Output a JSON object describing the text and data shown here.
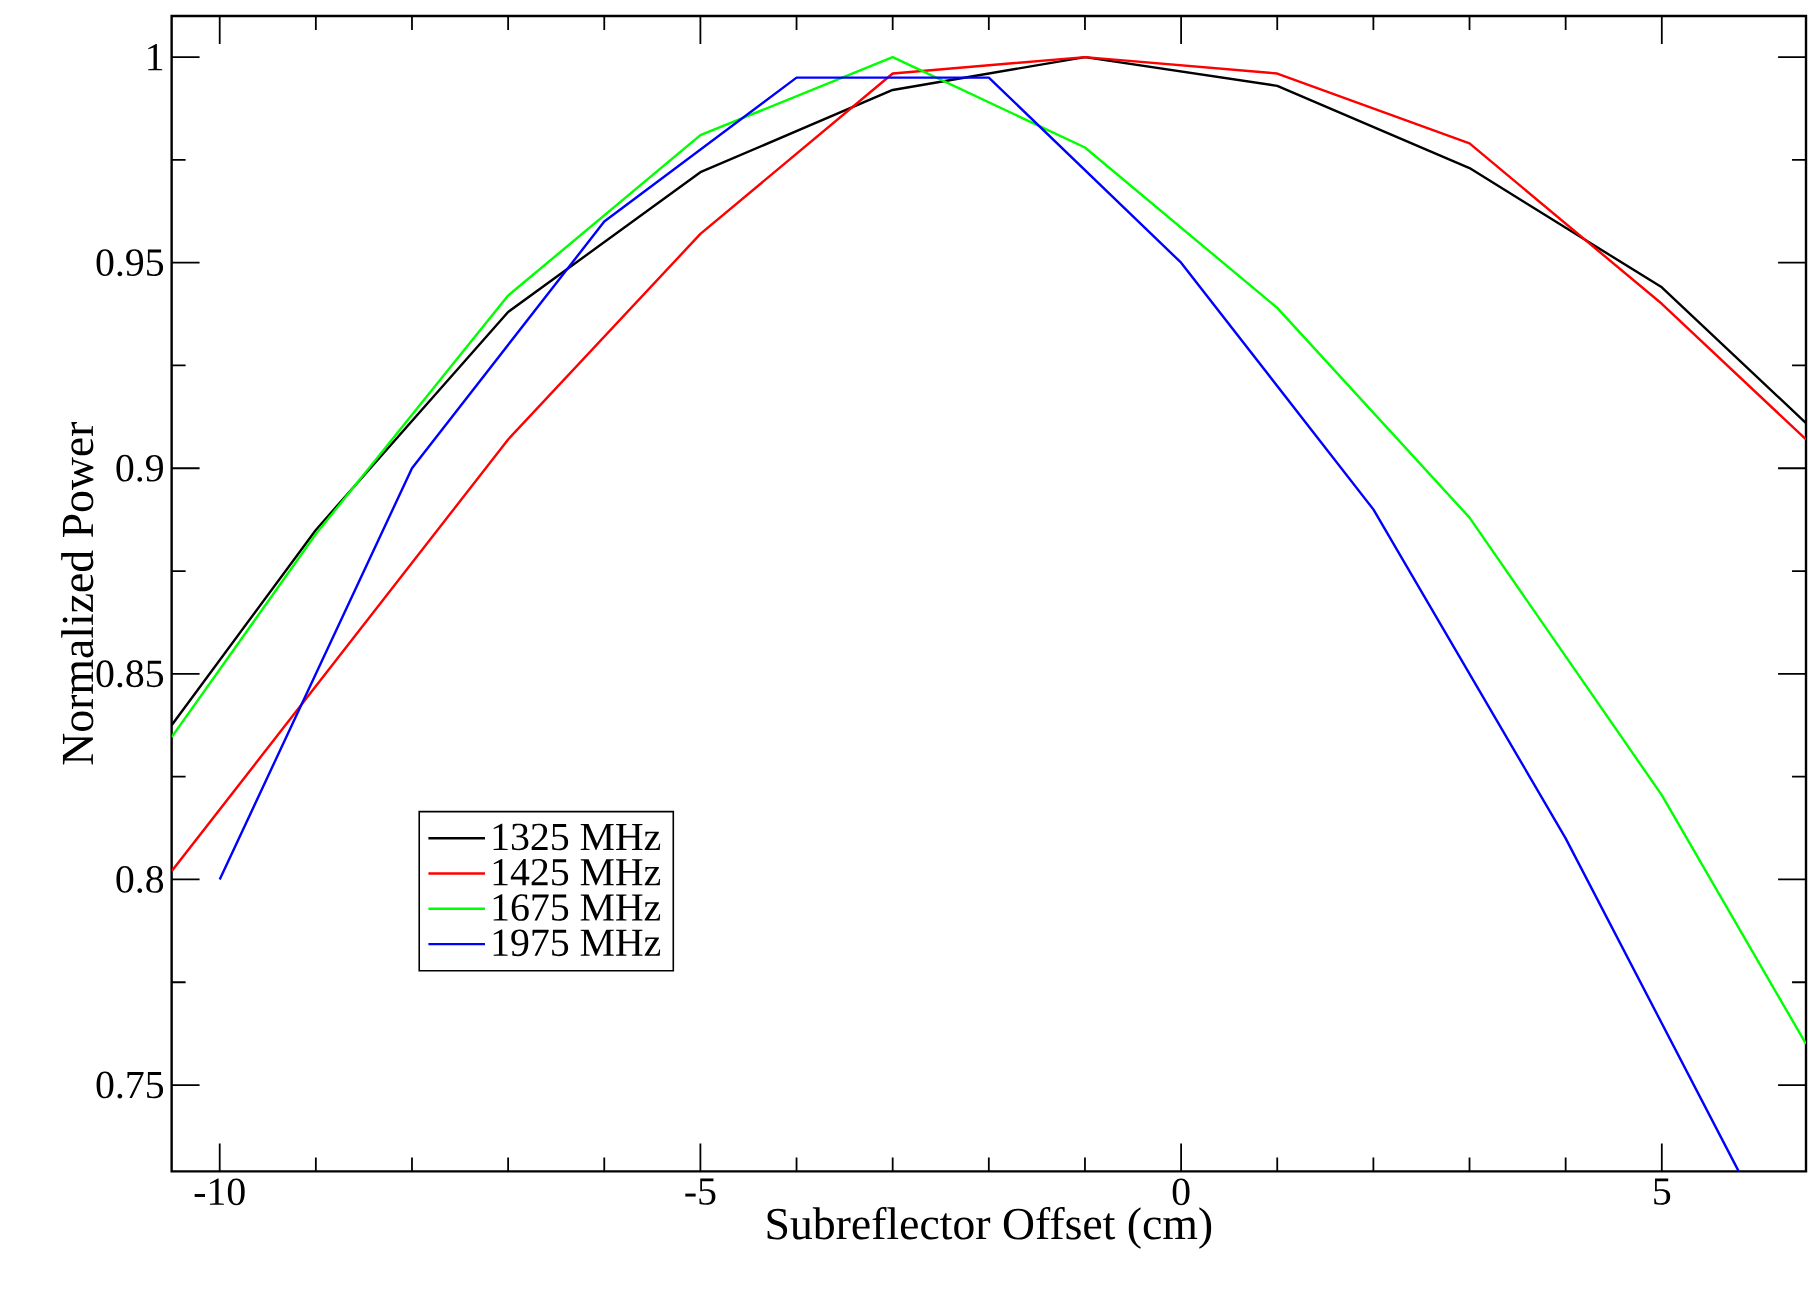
{
  "chart_data": {
    "type": "line",
    "xlabel": "Subreflector Offset (cm)",
    "ylabel": "Normalized Power",
    "xlim": [
      -10.5,
      6.5
    ],
    "ylim": [
      0.729,
      1.01
    ],
    "xticks": [
      -10,
      -5,
      0,
      5
    ],
    "yticks": [
      0.75,
      0.8,
      0.85,
      0.9,
      0.95,
      1
    ],
    "legend": "left",
    "series": [
      {
        "name": "1325 MHz",
        "color": "#000000",
        "x": [
          -10.5,
          -9,
          -7,
          -5,
          -3,
          -1,
          1,
          3,
          5,
          6.5
        ],
        "values": [
          0.8375,
          0.885,
          0.938,
          0.972,
          0.992,
          1.0,
          0.993,
          0.973,
          0.944,
          0.911
        ]
      },
      {
        "name": "1425 MHz",
        "color": "#ff0000",
        "x": [
          -10.5,
          -7,
          -5,
          -3,
          -1,
          1,
          3,
          5,
          6.5
        ],
        "values": [
          0.802,
          0.907,
          0.957,
          0.996,
          1.0,
          0.996,
          0.979,
          0.94,
          0.907
        ]
      },
      {
        "name": "1675 MHz",
        "color": "#00ff00",
        "x": [
          -10.5,
          -9,
          -7,
          -5,
          -3,
          -1,
          1,
          3,
          5,
          6.5
        ],
        "values": [
          0.8346,
          0.884,
          0.942,
          0.981,
          1.0,
          0.978,
          0.939,
          0.888,
          0.8205,
          0.76
        ]
      },
      {
        "name": "1975 MHz",
        "color": "#0000ff",
        "x": [
          -10,
          -8,
          -6,
          -4,
          -2,
          0,
          2,
          4,
          5.8
        ],
        "values": [
          0.8,
          0.9,
          0.96,
          0.995,
          0.995,
          0.95,
          0.89,
          0.81,
          0.729
        ]
      }
    ]
  }
}
